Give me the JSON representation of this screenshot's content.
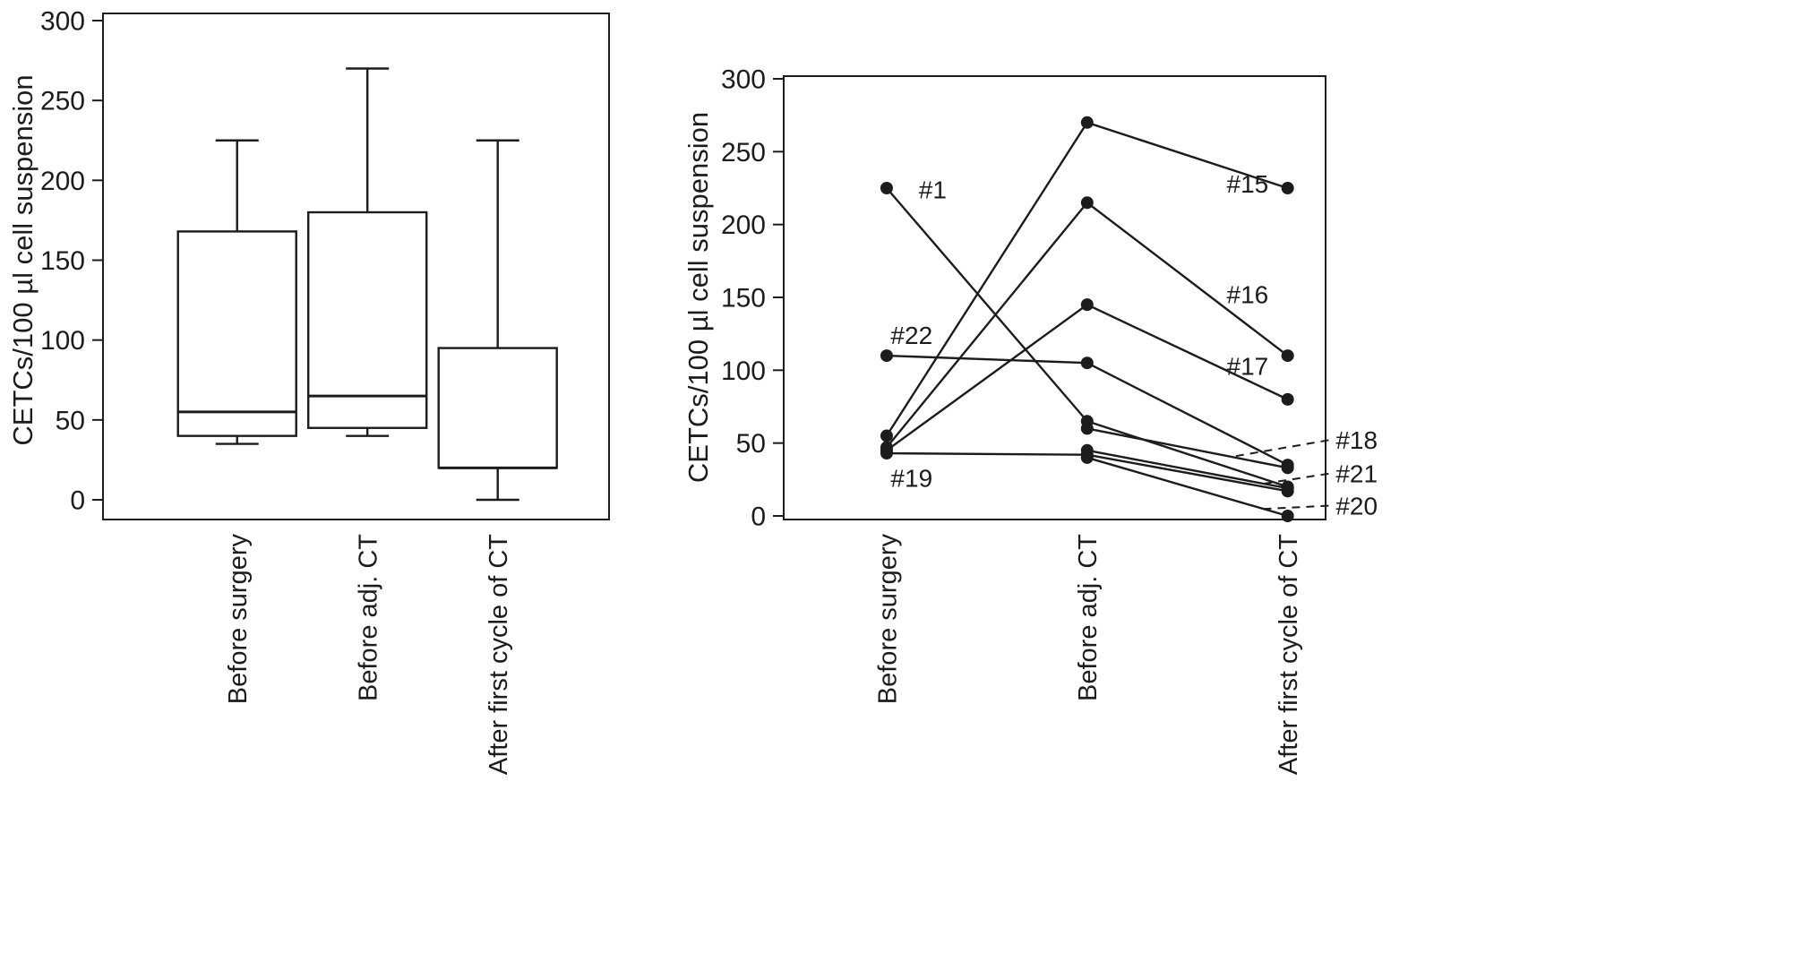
{
  "figure": {
    "background": "#ffffff",
    "ink": "#1c1c1c"
  },
  "chart_data": [
    {
      "id": "boxplot",
      "type": "box",
      "title": "",
      "ylabel": "CETCs/100 µl cell suspension",
      "ylim": [
        0,
        300
      ],
      "yticks": [
        0,
        50,
        100,
        150,
        200,
        250,
        300
      ],
      "grid": false,
      "categories": [
        "Before surgery",
        "Before adj. CT",
        "After first cycle of CT"
      ],
      "boxes": [
        {
          "category": "Before surgery",
          "whisker_low": 35,
          "q1": 40,
          "median": 55,
          "q3": 168,
          "whisker_high": 225
        },
        {
          "category": "Before adj. CT",
          "whisker_low": 40,
          "q1": 45,
          "median": 65,
          "q3": 180,
          "whisker_high": 270
        },
        {
          "category": "After first cycle of CT",
          "whisker_low": 0,
          "q1": 20,
          "median": 20,
          "q3": 95,
          "whisker_high": 225
        }
      ]
    },
    {
      "id": "lineplot",
      "type": "line",
      "title": "",
      "ylabel": "CETCs/100 µl cell suspension",
      "ylim": [
        0,
        300
      ],
      "yticks": [
        0,
        50,
        100,
        150,
        200,
        250,
        300
      ],
      "grid": false,
      "legend": "inline-annotations",
      "categories": [
        "Before surgery",
        "Before adj. CT",
        "After first cycle of CT"
      ],
      "series": [
        {
          "name": "#1",
          "values": [
            225,
            65,
            20
          ],
          "label": {
            "u": 0.16,
            "y": 224,
            "anchor": "start"
          }
        },
        {
          "name": "#22",
          "values": [
            110,
            105,
            35
          ],
          "label": {
            "u": 0.02,
            "y": 124,
            "anchor": "start"
          }
        },
        {
          "name": "#19",
          "values": [
            43,
            42,
            17
          ],
          "label": {
            "u": 0.02,
            "y": 26,
            "anchor": "start"
          }
        },
        {
          "name": "#15",
          "values": [
            55,
            270,
            225
          ],
          "label": {
            "u": 1.8,
            "y": 228,
            "anchor": "middle"
          }
        },
        {
          "name": "#16",
          "values": [
            47,
            215,
            110
          ],
          "label": {
            "u": 1.8,
            "y": 152,
            "anchor": "middle"
          }
        },
        {
          "name": "#17",
          "values": [
            45,
            145,
            80
          ],
          "label": {
            "u": 1.8,
            "y": 103,
            "anchor": "middle"
          }
        },
        {
          "name": "#18",
          "values": [
            null,
            60,
            33
          ],
          "label": {
            "u": 2.24,
            "y": 52,
            "anchor": "start",
            "leader": true,
            "leader_u": 1.72
          }
        },
        {
          "name": "#21",
          "values": [
            null,
            45,
            19
          ],
          "label": {
            "u": 2.24,
            "y": 29,
            "anchor": "start",
            "leader": true,
            "leader_u": 1.88
          }
        },
        {
          "name": "#20",
          "values": [
            null,
            40,
            0
          ],
          "label": {
            "u": 2.24,
            "y": 7,
            "anchor": "start",
            "leader": true,
            "leader_u": 1.88
          }
        }
      ]
    }
  ]
}
